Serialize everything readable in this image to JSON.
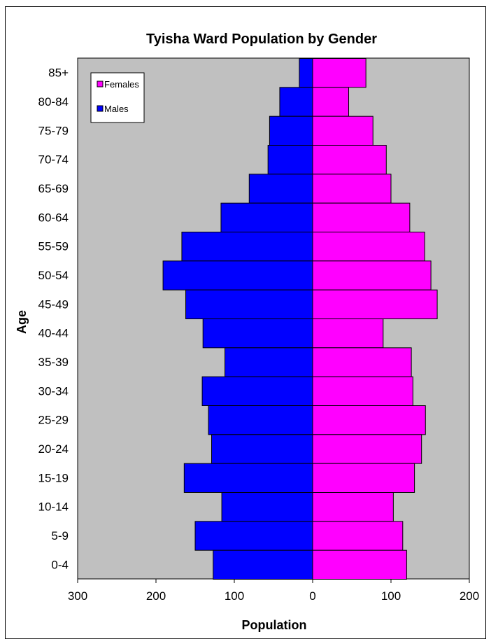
{
  "chart_data": {
    "type": "bar",
    "orientation": "horizontal",
    "title": "Tyisha Ward Population by Gender",
    "xlabel": "Population",
    "ylabel": "Age",
    "categories": [
      "0-4",
      "5-9",
      "10-14",
      "15-19",
      "20-24",
      "25-29",
      "30-34",
      "35-39",
      "40-44",
      "45-49",
      "50-54",
      "55-59",
      "60-64",
      "65-69",
      "70-74",
      "75-79",
      "80-84",
      "85+"
    ],
    "series": [
      {
        "name": "Females",
        "color": "#ff00ff",
        "values": [
          120,
          115,
          103,
          130,
          139,
          144,
          128,
          126,
          90,
          159,
          151,
          143,
          124,
          100,
          94,
          77,
          46,
          68
        ]
      },
      {
        "name": "Males",
        "color": "#0000ff",
        "values": [
          127,
          150,
          116,
          164,
          129,
          133,
          141,
          112,
          140,
          162,
          191,
          167,
          117,
          81,
          57,
          55,
          42,
          17
        ]
      }
    ],
    "x_ticks": [
      "300",
      "200",
      "100",
      "0",
      "100",
      "200"
    ],
    "xlim": [
      -300,
      200
    ],
    "legend_position": "top-left",
    "plot_background": "#c0c0c0",
    "grid": false
  }
}
